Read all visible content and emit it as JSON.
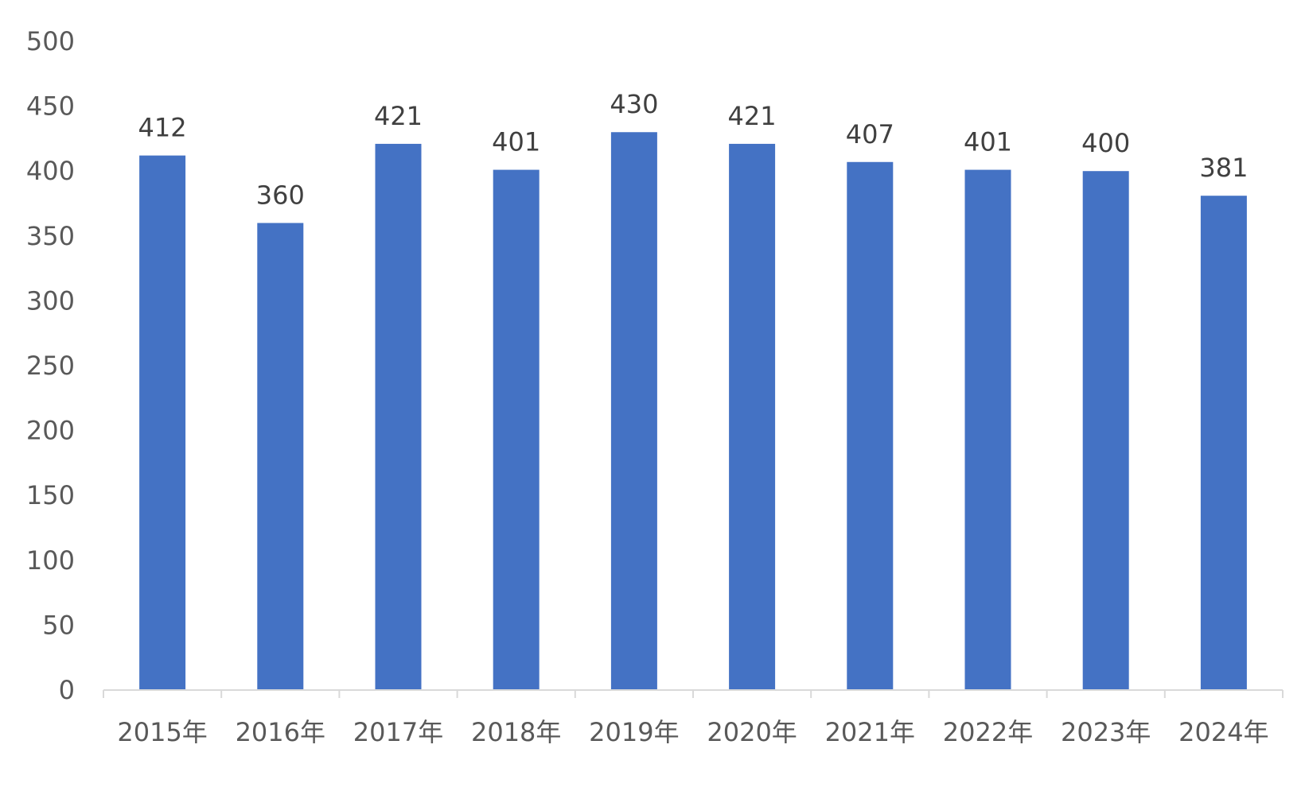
{
  "chart_data": {
    "type": "bar",
    "title": "",
    "xlabel": "",
    "ylabel": "",
    "categories": [
      "2015年",
      "2016年",
      "2017年",
      "2018年",
      "2019年",
      "2020年",
      "2021年",
      "2022年",
      "2023年",
      "2024年"
    ],
    "values": [
      412,
      360,
      421,
      401,
      430,
      421,
      407,
      401,
      400,
      381
    ],
    "data_labels": [
      "412",
      "360",
      "421",
      "401",
      "430",
      "421",
      "407",
      "401",
      "400",
      "381"
    ],
    "ylim": [
      0,
      500
    ],
    "yticks": [
      0,
      50,
      100,
      150,
      200,
      250,
      300,
      350,
      400,
      450,
      500
    ],
    "ytick_labels": [
      "0",
      "50",
      "100",
      "150",
      "200",
      "250",
      "300",
      "350",
      "400",
      "450",
      "500"
    ],
    "grid": false,
    "legend": "none",
    "colors": {
      "bar": "#4472C4",
      "axis": "#D9D9D9",
      "tick_text": "#595959",
      "label_text": "#404040"
    }
  }
}
